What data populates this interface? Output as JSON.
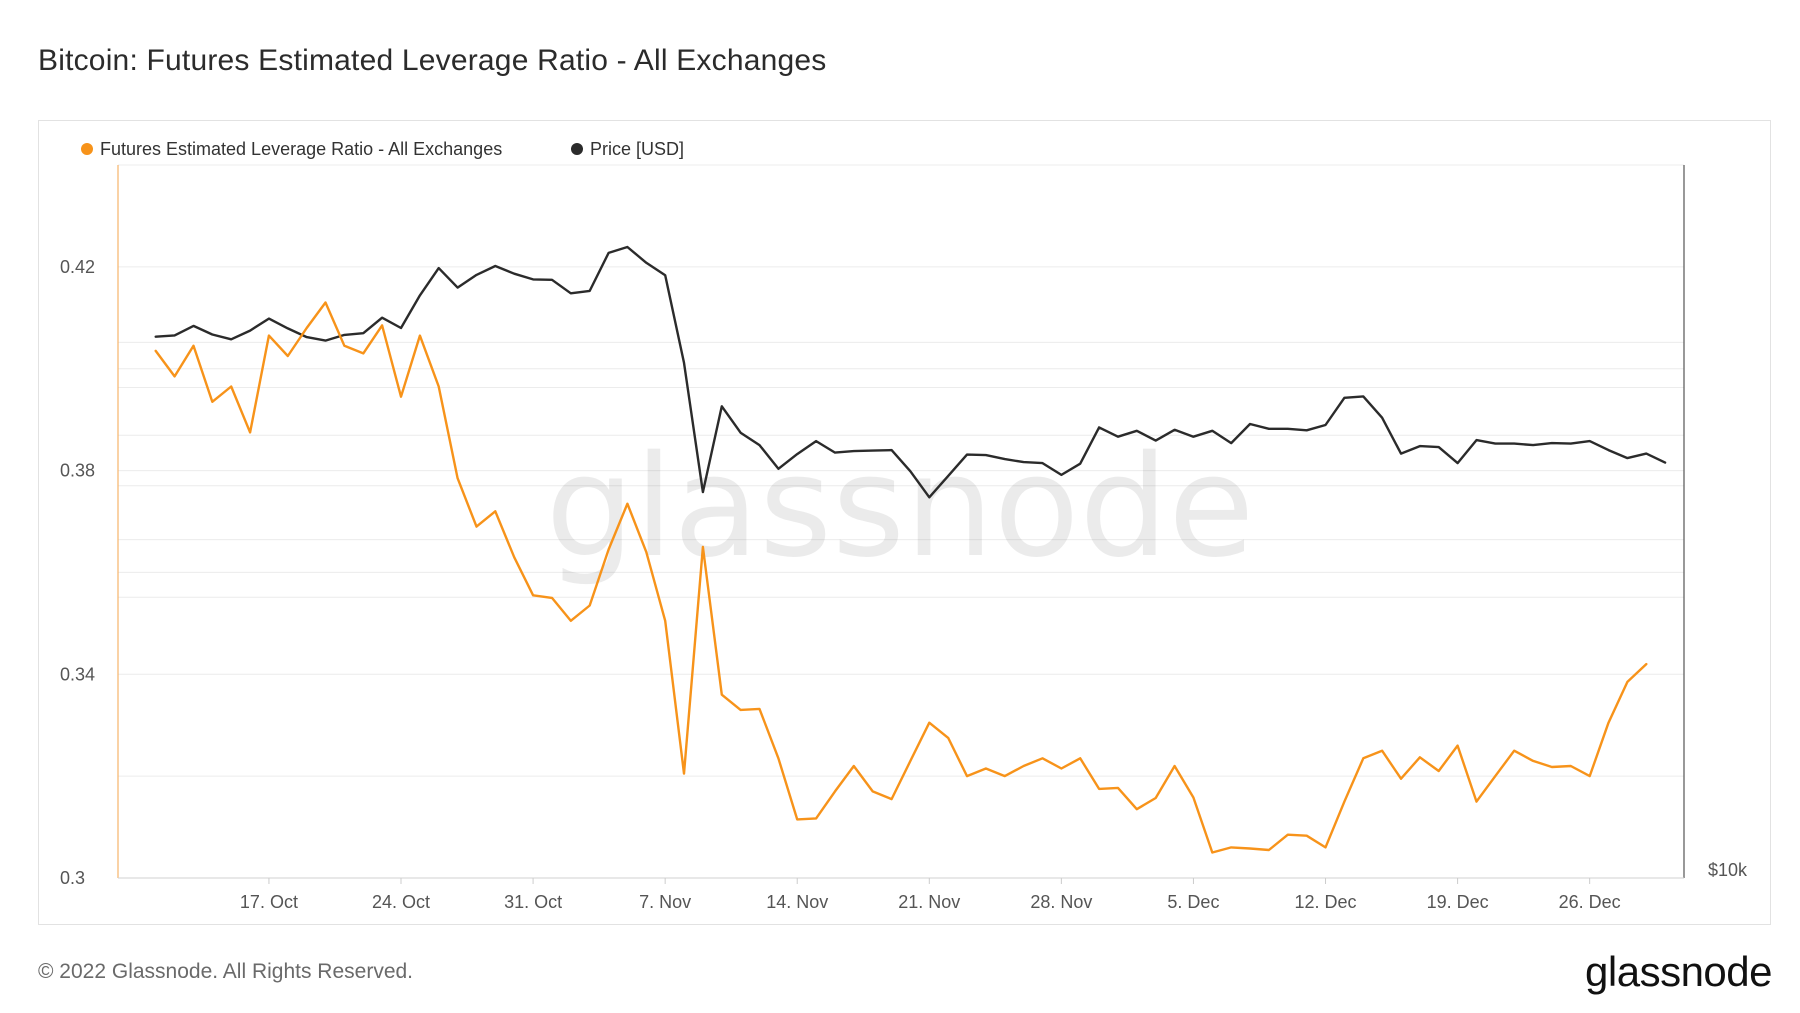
{
  "header": {
    "title": "Bitcoin: Futures Estimated Leverage Ratio - All Exchanges"
  },
  "footer": {
    "copyright": "© 2022 Glassnode. All Rights Reserved.",
    "brand": "glassnode"
  },
  "watermark": "glassnode",
  "chart_data": {
    "type": "line",
    "title": "Bitcoin: Futures Estimated Leverage Ratio - All Exchanges",
    "x_start": "2022-10-09",
    "x_end": "2022-12-31",
    "x_ticks": [
      {
        "date": "2022-10-17",
        "label": "17. Oct"
      },
      {
        "date": "2022-10-24",
        "label": "24. Oct"
      },
      {
        "date": "2022-10-31",
        "label": "31. Oct"
      },
      {
        "date": "2022-11-07",
        "label": "7. Nov"
      },
      {
        "date": "2022-11-14",
        "label": "14. Nov"
      },
      {
        "date": "2022-11-21",
        "label": "21. Nov"
      },
      {
        "date": "2022-11-28",
        "label": "28. Nov"
      },
      {
        "date": "2022-12-05",
        "label": "5. Dec"
      },
      {
        "date": "2022-12-12",
        "label": "12. Dec"
      },
      {
        "date": "2022-12-19",
        "label": "19. Dec"
      },
      {
        "date": "2022-12-26",
        "label": "26. Dec"
      }
    ],
    "y_left": {
      "ticks": [
        0.3,
        0.34,
        0.38,
        0.42
      ],
      "tick_labels": [
        "0.3",
        "0.34",
        "0.38",
        "0.42"
      ],
      "ylim": [
        0.3,
        0.44
      ]
    },
    "y_right": {
      "ticks": [
        10000
      ],
      "tick_labels": [
        "$10k"
      ],
      "scale": "log",
      "ylim": [
        10000,
        23500
      ]
    },
    "grid": true,
    "legend_position": "top-left",
    "series": [
      {
        "name": "Futures Estimated Leverage Ratio - All Exchanges",
        "axis": "left",
        "color": "#f7931a",
        "points": [
          [
            "2022-10-11",
            0.4035
          ],
          [
            "2022-10-12",
            0.3985
          ],
          [
            "2022-10-13",
            0.4045
          ],
          [
            "2022-10-14",
            0.3935
          ],
          [
            "2022-10-15",
            0.3965
          ],
          [
            "2022-10-16",
            0.3875
          ],
          [
            "2022-10-17",
            0.4065
          ],
          [
            "2022-10-18",
            0.4025
          ],
          [
            "2022-10-19",
            0.408
          ],
          [
            "2022-10-20",
            0.413
          ],
          [
            "2022-10-21",
            0.4045
          ],
          [
            "2022-10-22",
            0.403
          ],
          [
            "2022-10-23",
            0.4085
          ],
          [
            "2022-10-24",
            0.3945
          ],
          [
            "2022-10-25",
            0.4065
          ],
          [
            "2022-10-26",
            0.3965
          ],
          [
            "2022-10-27",
            0.3785
          ],
          [
            "2022-10-28",
            0.369
          ],
          [
            "2022-10-29",
            0.372
          ],
          [
            "2022-10-30",
            0.363
          ],
          [
            "2022-10-31",
            0.3555
          ],
          [
            "2022-11-01",
            0.355
          ],
          [
            "2022-11-02",
            0.3505
          ],
          [
            "2022-11-03",
            0.3535
          ],
          [
            "2022-11-04",
            0.3645
          ],
          [
            "2022-11-05",
            0.3735
          ],
          [
            "2022-11-06",
            0.364
          ],
          [
            "2022-11-07",
            0.3505
          ],
          [
            "2022-11-08",
            0.3205
          ],
          [
            "2022-11-09",
            0.365
          ],
          [
            "2022-11-10",
            0.336
          ],
          [
            "2022-11-11",
            0.333
          ],
          [
            "2022-11-12",
            0.3332
          ],
          [
            "2022-11-13",
            0.3235
          ],
          [
            "2022-11-14",
            0.3115
          ],
          [
            "2022-11-15",
            0.3117
          ],
          [
            "2022-11-16",
            0.317
          ],
          [
            "2022-11-17",
            0.322
          ],
          [
            "2022-11-18",
            0.317
          ],
          [
            "2022-11-19",
            0.3155
          ],
          [
            "2022-11-20",
            0.323
          ],
          [
            "2022-11-21",
            0.3305
          ],
          [
            "2022-11-22",
            0.3275
          ],
          [
            "2022-11-23",
            0.32
          ],
          [
            "2022-11-24",
            0.3215
          ],
          [
            "2022-11-25",
            0.32
          ],
          [
            "2022-11-26",
            0.322
          ],
          [
            "2022-11-27",
            0.3235
          ],
          [
            "2022-11-28",
            0.3215
          ],
          [
            "2022-11-29",
            0.3235
          ],
          [
            "2022-11-30",
            0.3175
          ],
          [
            "2022-12-01",
            0.3177
          ],
          [
            "2022-12-02",
            0.3135
          ],
          [
            "2022-12-03",
            0.3157
          ],
          [
            "2022-12-04",
            0.322
          ],
          [
            "2022-12-05",
            0.3158
          ],
          [
            "2022-12-06",
            0.305
          ],
          [
            "2022-12-07",
            0.306
          ],
          [
            "2022-12-08",
            0.3058
          ],
          [
            "2022-12-09",
            0.3055
          ],
          [
            "2022-12-10",
            0.3085
          ],
          [
            "2022-12-11",
            0.3083
          ],
          [
            "2022-12-12",
            0.306
          ],
          [
            "2022-12-13",
            0.315
          ],
          [
            "2022-12-14",
            0.3235
          ],
          [
            "2022-12-15",
            0.325
          ],
          [
            "2022-12-16",
            0.3195
          ],
          [
            "2022-12-17",
            0.3237
          ],
          [
            "2022-12-18",
            0.321
          ],
          [
            "2022-12-19",
            0.326
          ],
          [
            "2022-12-20",
            0.315
          ],
          [
            "2022-12-21",
            0.32
          ],
          [
            "2022-12-22",
            0.325
          ],
          [
            "2022-12-23",
            0.323
          ],
          [
            "2022-12-24",
            0.3218
          ],
          [
            "2022-12-25",
            0.322
          ],
          [
            "2022-12-26",
            0.32
          ],
          [
            "2022-12-27",
            0.3305
          ],
          [
            "2022-12-28",
            0.3385
          ],
          [
            "2022-12-29",
            0.342
          ]
        ]
      },
      {
        "name": "Price [USD]",
        "axis": "right",
        "color": "#2b2b2b",
        "points": [
          [
            "2022-10-11",
            19130
          ],
          [
            "2022-10-12",
            19160
          ],
          [
            "2022-10-13",
            19380
          ],
          [
            "2022-10-14",
            19180
          ],
          [
            "2022-10-15",
            19070
          ],
          [
            "2022-10-16",
            19270
          ],
          [
            "2022-10-17",
            19550
          ],
          [
            "2022-10-18",
            19320
          ],
          [
            "2022-10-19",
            19120
          ],
          [
            "2022-10-20",
            19040
          ],
          [
            "2022-10-21",
            19170
          ],
          [
            "2022-10-22",
            19210
          ],
          [
            "2022-10-23",
            19570
          ],
          [
            "2022-10-24",
            19330
          ],
          [
            "2022-10-25",
            20100
          ],
          [
            "2022-10-26",
            20770
          ],
          [
            "2022-10-27",
            20290
          ],
          [
            "2022-10-28",
            20600
          ],
          [
            "2022-10-29",
            20820
          ],
          [
            "2022-10-30",
            20630
          ],
          [
            "2022-10-31",
            20490
          ],
          [
            "2022-11-01",
            20480
          ],
          [
            "2022-11-02",
            20150
          ],
          [
            "2022-11-03",
            20210
          ],
          [
            "2022-11-04",
            21150
          ],
          [
            "2022-11-05",
            21300
          ],
          [
            "2022-11-06",
            20900
          ],
          [
            "2022-11-07",
            20590
          ],
          [
            "2022-11-08",
            18540
          ],
          [
            "2022-11-09",
            15880
          ],
          [
            "2022-11-10",
            17600
          ],
          [
            "2022-11-11",
            17050
          ],
          [
            "2022-11-12",
            16800
          ],
          [
            "2022-11-13",
            16330
          ],
          [
            "2022-11-14",
            16620
          ],
          [
            "2022-11-15",
            16880
          ],
          [
            "2022-11-16",
            16650
          ],
          [
            "2022-11-17",
            16680
          ],
          [
            "2022-11-18",
            16690
          ],
          [
            "2022-11-19",
            16700
          ],
          [
            "2022-11-20",
            16280
          ],
          [
            "2022-11-21",
            15780
          ],
          [
            "2022-11-22",
            16190
          ],
          [
            "2022-11-23",
            16610
          ],
          [
            "2022-11-24",
            16600
          ],
          [
            "2022-11-25",
            16520
          ],
          [
            "2022-11-26",
            16460
          ],
          [
            "2022-11-27",
            16440
          ],
          [
            "2022-11-28",
            16210
          ],
          [
            "2022-11-29",
            16430
          ],
          [
            "2022-11-30",
            17160
          ],
          [
            "2022-12-01",
            16970
          ],
          [
            "2022-12-02",
            17090
          ],
          [
            "2022-12-03",
            16890
          ],
          [
            "2022-12-04",
            17110
          ],
          [
            "2022-12-05",
            16970
          ],
          [
            "2022-12-06",
            17090
          ],
          [
            "2022-12-07",
            16840
          ],
          [
            "2022-12-08",
            17230
          ],
          [
            "2022-12-09",
            17130
          ],
          [
            "2022-12-10",
            17130
          ],
          [
            "2022-12-11",
            17100
          ],
          [
            "2022-12-12",
            17210
          ],
          [
            "2022-12-13",
            17780
          ],
          [
            "2022-12-14",
            17810
          ],
          [
            "2022-12-15",
            17360
          ],
          [
            "2022-12-16",
            16630
          ],
          [
            "2022-12-17",
            16780
          ],
          [
            "2022-12-18",
            16760
          ],
          [
            "2022-12-19",
            16440
          ],
          [
            "2022-12-20",
            16900
          ],
          [
            "2022-12-21",
            16830
          ],
          [
            "2022-12-22",
            16830
          ],
          [
            "2022-12-23",
            16800
          ],
          [
            "2022-12-24",
            16840
          ],
          [
            "2022-12-25",
            16830
          ],
          [
            "2022-12-26",
            16880
          ],
          [
            "2022-12-27",
            16700
          ],
          [
            "2022-12-28",
            16540
          ],
          [
            "2022-12-29",
            16630
          ],
          [
            "2022-12-30",
            16450
          ]
        ]
      }
    ]
  }
}
